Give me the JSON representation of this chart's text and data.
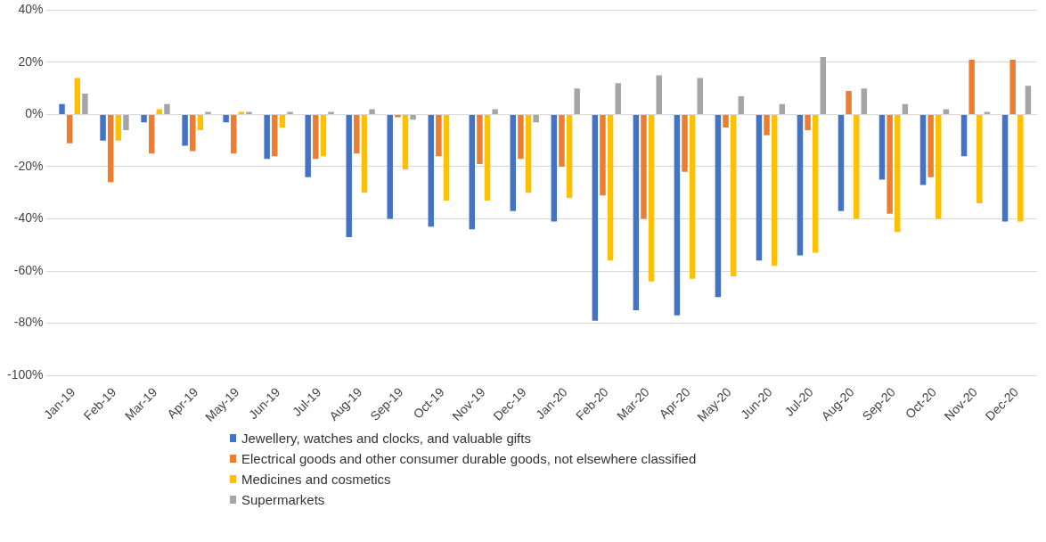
{
  "chart_data": {
    "type": "bar",
    "categories": [
      "Jan-19",
      "Feb-19",
      "Mar-19",
      "Apr-19",
      "May-19",
      "Jun-19",
      "Jul-19",
      "Aug-19",
      "Sep-19",
      "Oct-19",
      "Nov-19",
      "Dec-19",
      "Jan-20",
      "Feb-20",
      "Mar-20",
      "Apr-20",
      "May-20",
      "Jun-20",
      "Jul-20",
      "Aug-20",
      "Sep-20",
      "Oct-20",
      "Nov-20",
      "Dec-20"
    ],
    "series": [
      {
        "name": "Jewellery, watches and clocks, and valuable gifts",
        "color": "#4472c4",
        "values": [
          4,
          -10,
          -3,
          -12,
          -3,
          -17,
          -24,
          -47,
          -40,
          -43,
          -44,
          -37,
          -41,
          -79,
          -75,
          -77,
          -70,
          -56,
          -54,
          -37,
          -25,
          -27,
          -16,
          -41
        ]
      },
      {
        "name": "Electrical goods and other consumer durable goods, not elsewhere classified",
        "color": "#ed7d31",
        "values": [
          -11,
          -26,
          -15,
          -14,
          -15,
          -16,
          -17,
          -15,
          -1,
          -16,
          -19,
          -17,
          -20,
          -31,
          -40,
          -22,
          -5,
          -8,
          -6,
          9,
          -38,
          -24,
          21,
          21
        ]
      },
      {
        "name": "Medicines and cosmetics",
        "color": "#ffc000",
        "values": [
          14,
          -10,
          2,
          -6,
          1,
          -5,
          -16,
          -30,
          -21,
          -33,
          -33,
          -30,
          -32,
          -56,
          -64,
          -63,
          -62,
          -58,
          -53,
          -40,
          -45,
          -40,
          -34,
          -41
        ]
      },
      {
        "name": "Supermarkets",
        "color": "#a5a5a5",
        "values": [
          8,
          -6,
          4,
          1,
          1,
          1,
          1,
          2,
          -2,
          null,
          2,
          -3,
          10,
          12,
          15,
          14,
          7,
          4,
          22,
          10,
          4,
          2,
          1,
          11
        ]
      }
    ],
    "ylim": [
      -100,
      40
    ],
    "yticks": [
      {
        "value": -100,
        "label": "-100%"
      },
      {
        "value": -80,
        "label": "-80%"
      },
      {
        "value": -60,
        "label": "-60%"
      },
      {
        "value": -40,
        "label": "-40%"
      },
      {
        "value": -20,
        "label": "-20%"
      },
      {
        "value": 0,
        "label": "0%"
      },
      {
        "value": 20,
        "label": "20%"
      },
      {
        "value": 40,
        "label": "40%"
      }
    ],
    "grid": "y",
    "legend": "bottom"
  }
}
